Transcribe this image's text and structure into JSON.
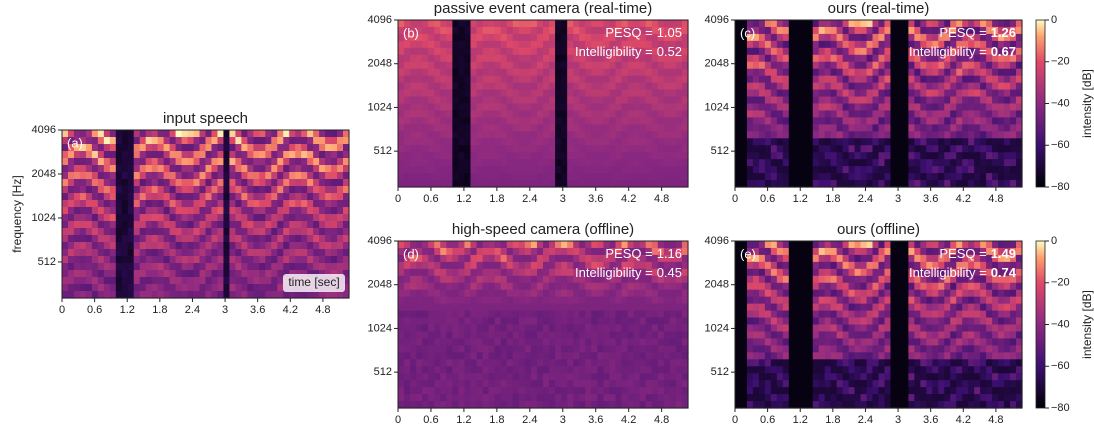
{
  "chart_data": [
    {
      "type": "spectrogram",
      "label": "(a)",
      "title": "input speech",
      "ylabel": "frequency [Hz]",
      "annotation": "time [sec]",
      "xlim": [
        0,
        5.28
      ],
      "xticks": [
        0,
        0.6,
        1.2,
        1.8,
        2.4,
        3,
        3.6,
        4.2,
        4.8
      ],
      "ylim": [
        290,
        4096
      ],
      "yticks": [
        512,
        1024,
        2048,
        4096
      ],
      "yscale": "log"
    },
    {
      "type": "spectrogram",
      "label": "(b)",
      "title": "passive event camera (real-time)",
      "metrics": [
        {
          "label": "PESQ =",
          "value": 1.05
        },
        {
          "label": "Intelligibility =",
          "value": 0.52
        }
      ],
      "highlight": false,
      "xlim": [
        0,
        5.28
      ],
      "xticks": [
        0,
        0.6,
        1.2,
        1.8,
        2.4,
        3,
        3.6,
        4.2,
        4.8
      ],
      "ylim": [
        290,
        4096
      ],
      "yticks": [
        512,
        1024,
        2048,
        4096
      ],
      "yscale": "log"
    },
    {
      "type": "spectrogram",
      "label": "(c)",
      "title": "ours (real-time)",
      "metrics": [
        {
          "label": "PESQ =",
          "value": 1.26
        },
        {
          "label": "Intelligibility =",
          "value": 0.67
        }
      ],
      "highlight": true,
      "xlim": [
        0,
        5.28
      ],
      "xticks": [
        0,
        0.6,
        1.2,
        1.8,
        2.4,
        3,
        3.6,
        4.2,
        4.8
      ],
      "ylim": [
        290,
        4096
      ],
      "yticks": [
        512,
        1024,
        2048,
        4096
      ],
      "yscale": "log",
      "colorbar": {
        "label": "intensity [dB]",
        "lim": [
          -80,
          0
        ],
        "ticks": [
          0,
          {
            "value": -20,
            "label": "−20"
          },
          {
            "value": -40,
            "label": "−40"
          },
          {
            "value": -60,
            "label": "−60"
          },
          {
            "value": -80,
            "label": "−80"
          }
        ]
      }
    },
    {
      "type": "spectrogram",
      "label": "(d)",
      "title": "high-speed camera (offline)",
      "metrics": [
        {
          "label": "PESQ =",
          "value": 1.16
        },
        {
          "label": "Intelligibility =",
          "value": 0.45
        }
      ],
      "highlight": false,
      "xlim": [
        0,
        5.28
      ],
      "xticks": [
        0,
        0.6,
        1.2,
        1.8,
        2.4,
        3,
        3.6,
        4.2,
        4.8
      ],
      "ylim": [
        290,
        4096
      ],
      "yticks": [
        512,
        1024,
        2048,
        4096
      ],
      "yscale": "log"
    },
    {
      "type": "spectrogram",
      "label": "(e)",
      "title": "ours (offline)",
      "metrics": [
        {
          "label": "PESQ =",
          "value": 1.49
        },
        {
          "label": "Intelligibility =",
          "value": 0.74
        }
      ],
      "highlight": true,
      "xlim": [
        0,
        5.28
      ],
      "xticks": [
        0,
        0.6,
        1.2,
        1.8,
        2.4,
        3,
        3.6,
        4.2,
        4.8
      ],
      "ylim": [
        290,
        4096
      ],
      "yticks": [
        512,
        1024,
        2048,
        4096
      ],
      "yscale": "log",
      "colorbar": {
        "label": "intensity [dB]",
        "lim": [
          -80,
          0
        ],
        "ticks": [
          0,
          {
            "value": -20,
            "label": "−20"
          },
          {
            "value": -40,
            "label": "−40"
          },
          {
            "value": -60,
            "label": "−60"
          },
          {
            "value": -80,
            "label": "−80"
          }
        ]
      }
    }
  ]
}
